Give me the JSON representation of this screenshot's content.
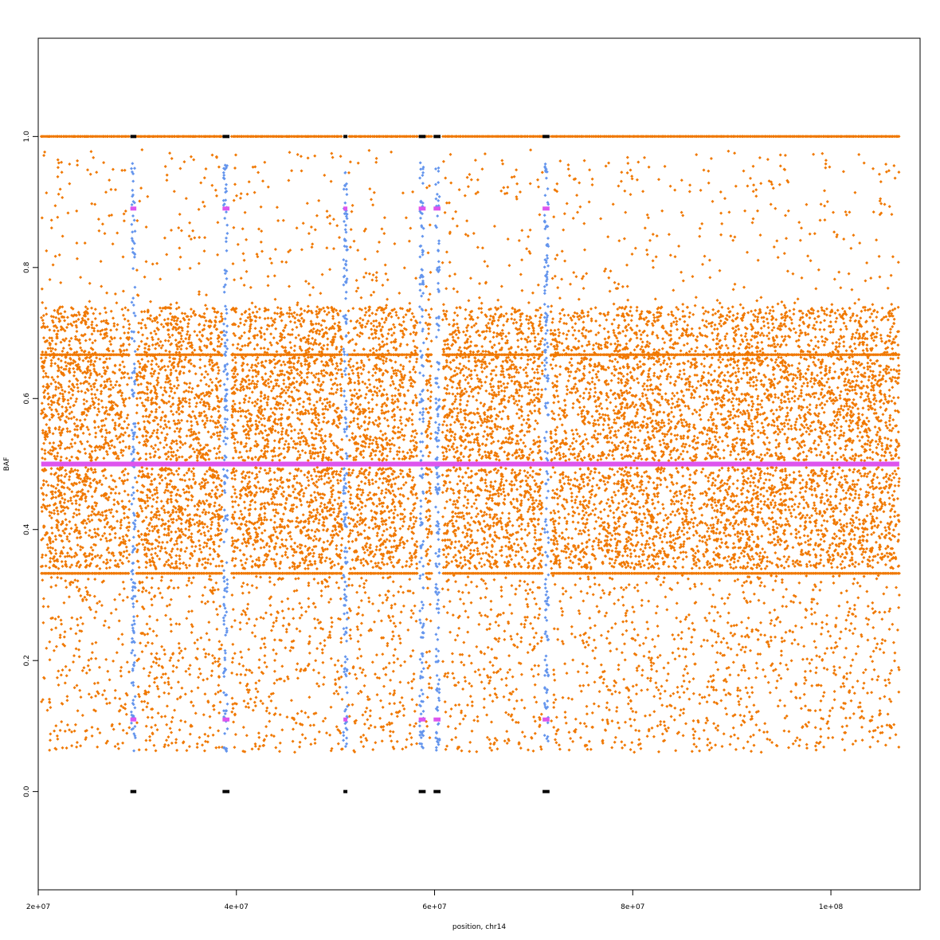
{
  "chart_data": {
    "type": "scatter",
    "xlabel": "position, chr14",
    "ylabel": "BAF",
    "xlim": [
      20000000,
      109000000
    ],
    "ylim": [
      -0.15,
      1.15
    ],
    "x_ticks": [
      {
        "value": 20000000,
        "label": "2e+07"
      },
      {
        "value": 40000000,
        "label": "4e+07"
      },
      {
        "value": 60000000,
        "label": "6e+07"
      },
      {
        "value": 80000000,
        "label": "8e+07"
      },
      {
        "value": 100000000,
        "label": "1e+08"
      }
    ],
    "y_ticks": [
      {
        "value": 0.0,
        "label": "0.0"
      },
      {
        "value": 0.2,
        "label": "0.2"
      },
      {
        "value": 0.4,
        "label": "0.4"
      },
      {
        "value": 0.6,
        "label": "0.6"
      },
      {
        "value": 0.8,
        "label": "0.8"
      },
      {
        "value": 1.0,
        "label": "1.0"
      }
    ],
    "grid": false,
    "data_range_x": [
      20300000,
      106900000
    ],
    "orange_density_regions": [
      {
        "y_range": [
          0.505,
          0.66
        ],
        "density": "very high"
      },
      {
        "y_range": [
          0.34,
          0.495
        ],
        "density": "very high"
      },
      {
        "y_range": [
          0.66,
          0.74
        ],
        "density": "medium"
      },
      {
        "y_range": [
          0.06,
          0.33
        ],
        "density": "medium"
      },
      {
        "y_range": [
          0.74,
          0.98
        ],
        "density": "low"
      }
    ],
    "horizontal_band_values": [
      0.333,
      0.667,
      1.0
    ],
    "gap_regions": [
      [
        29200000,
        29900000
      ],
      [
        38600000,
        39500000
      ],
      [
        50700000,
        51300000
      ],
      [
        58300000,
        59100000
      ],
      [
        59700000,
        60800000
      ],
      [
        70900000,
        71700000
      ]
    ],
    "series": [
      {
        "color": "#f07800",
        "marker": "diamond",
        "description": "SNP BAF values"
      },
      {
        "color": "#6495ed",
        "marker": "diamond",
        "description": "BAF points in gap regions",
        "vertical_columns_x": [
          29600000,
          38900000,
          51000000,
          58700000,
          60300000,
          71300000
        ]
      },
      {
        "color": "#dd55ee",
        "marker": "segment",
        "description": "BAF segment means",
        "main_segment": {
          "y": 0.5,
          "x_range": [
            20300000,
            106900000
          ]
        },
        "short_segments": [
          {
            "x_range": [
              29300000,
              29900000
            ],
            "y_values": [
              0.89,
              0.11
            ]
          },
          {
            "x_range": [
              38600000,
              39300000
            ],
            "y_values": [
              0.89,
              0.11
            ]
          },
          {
            "x_range": [
              50800000,
              51200000
            ],
            "y_values": [
              0.89,
              0.11
            ]
          },
          {
            "x_range": [
              58400000,
              59100000
            ],
            "y_values": [
              0.89,
              0.11
            ]
          },
          {
            "x_range": [
              59900000,
              60600000
            ],
            "y_values": [
              0.89,
              0.11
            ]
          },
          {
            "x_range": [
              70900000,
              71600000
            ],
            "y_values": [
              0.89,
              0.11
            ]
          }
        ]
      },
      {
        "color": "#000000",
        "marker": "segment",
        "description": "homozygous segments",
        "short_segments": [
          {
            "x_range": [
              29300000,
              29900000
            ],
            "y_values": [
              1.0,
              0.0
            ]
          },
          {
            "x_range": [
              38600000,
              39300000
            ],
            "y_values": [
              1.0,
              0.0
            ]
          },
          {
            "x_range": [
              50800000,
              51200000
            ],
            "y_values": [
              1.0,
              0.0
            ]
          },
          {
            "x_range": [
              58400000,
              59100000
            ],
            "y_values": [
              1.0,
              0.0
            ]
          },
          {
            "x_range": [
              59900000,
              60600000
            ],
            "y_values": [
              1.0,
              0.0
            ]
          },
          {
            "x_range": [
              70900000,
              71600000
            ],
            "y_values": [
              1.0,
              0.0
            ]
          }
        ]
      }
    ]
  }
}
